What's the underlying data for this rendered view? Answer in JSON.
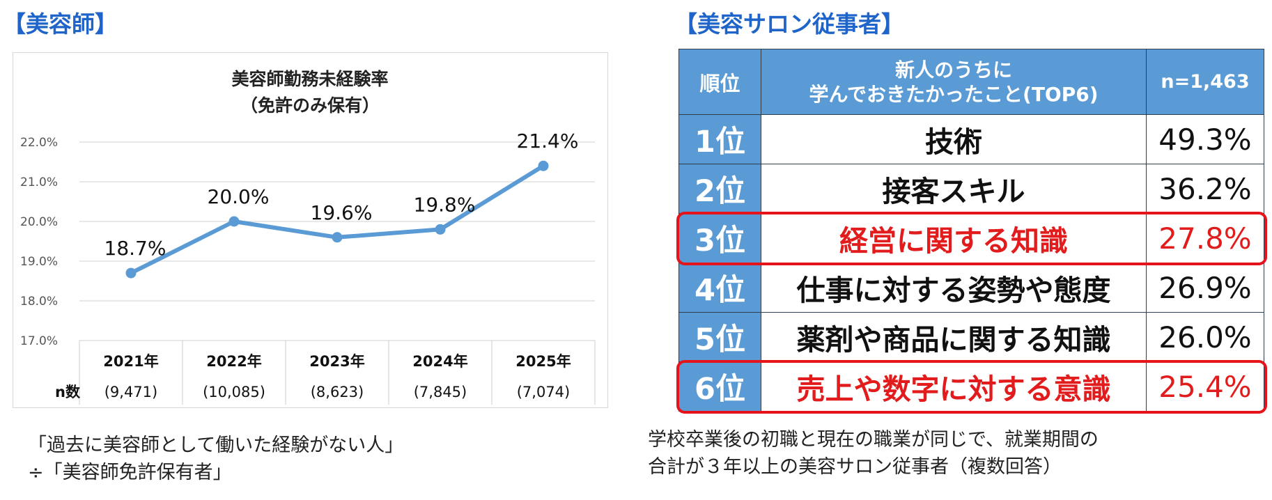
{
  "left_heading": "【美容師】",
  "right_heading": "【美容サロン従事者】",
  "chart_data": {
    "type": "line",
    "title": "美容師勤務未経験率",
    "subtitle": "（免許のみ保有）",
    "categories": [
      "2021年",
      "2022年",
      "2023年",
      "2024年",
      "2025年"
    ],
    "n_label": "n数",
    "n_counts": [
      "(9,471)",
      "(10,085)",
      "(8,623)",
      "(7,845)",
      "(7,074)"
    ],
    "series": [
      {
        "values": [
          18.7,
          20.0,
          19.6,
          19.8,
          21.4
        ],
        "labels": [
          "18.7%",
          "20.0%",
          "19.6%",
          "19.8%",
          "21.4%"
        ]
      }
    ],
    "ylim": [
      17.0,
      22.0
    ],
    "yticks": [
      "22.0%",
      "21.0%",
      "20.0%",
      "19.0%",
      "18.0%",
      "17.0%"
    ],
    "ytick_values": [
      22.0,
      21.0,
      20.0,
      19.0,
      18.0,
      17.0
    ],
    "line_color": "#5b9bd5",
    "grid": true
  },
  "left_note": [
    "「過去に美容師として働いた経験がない人」",
    "÷「美容師免許保有者」"
  ],
  "table": {
    "header_rank": "順位",
    "header_item_line1": "新人のうちに",
    "header_item_line2": "学んでおきたかったこと(TOP6)",
    "header_n": "n=1,463",
    "rows": [
      {
        "rank": "1位",
        "item": "技術",
        "pct": "49.3%",
        "highlight": false
      },
      {
        "rank": "2位",
        "item": "接客スキル",
        "pct": "36.2%",
        "highlight": false
      },
      {
        "rank": "3位",
        "item": "経営に関する知識",
        "pct": "27.8%",
        "highlight": true
      },
      {
        "rank": "4位",
        "item": "仕事に対する姿勢や態度",
        "pct": "26.9%",
        "highlight": false
      },
      {
        "rank": "5位",
        "item": "薬剤や商品に関する知識",
        "pct": "26.0%",
        "highlight": false
      },
      {
        "rank": "6位",
        "item": "売上や数字に対する意識",
        "pct": "25.4%",
        "highlight": true
      }
    ],
    "highlight_color": "#e21c1c",
    "header_color": "#5b9bd5"
  },
  "right_note": [
    "学校卒業後の初職と現在の職業が同じで、就業期間の",
    "合計が３年以上の美容サロン従事者（複数回答）"
  ]
}
